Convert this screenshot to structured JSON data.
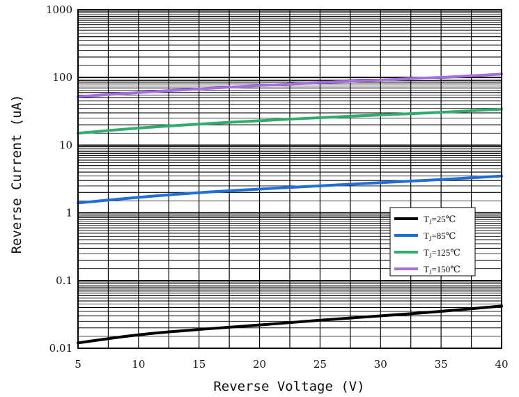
{
  "chart_data": {
    "type": "line",
    "xlabel": "Reverse Voltage (V)",
    "ylabel": "Reverse Current (uA)",
    "xlim": [
      5,
      40
    ],
    "ylim": [
      0.01,
      1000
    ],
    "yscale": "log",
    "x_ticks": [
      "5",
      "10",
      "15",
      "20",
      "25",
      "30",
      "35",
      "40"
    ],
    "y_ticks": [
      "0.01",
      "0.1",
      "1",
      "10",
      "100",
      "1000"
    ],
    "grid": true,
    "legend_position": "center-right",
    "x": [
      5,
      10,
      15,
      20,
      25,
      30,
      35,
      40
    ],
    "series": [
      {
        "name_prefix": "T",
        "name_sub": "J",
        "name_suffix": "=25℃",
        "color": "#000000",
        "values": [
          0.012,
          0.016,
          0.019,
          0.022,
          0.026,
          0.03,
          0.035,
          0.042
        ]
      },
      {
        "name_prefix": "T",
        "name_sub": "J",
        "name_suffix": "=85℃",
        "color": "#1f6fd6",
        "values": [
          1.4,
          1.7,
          2.0,
          2.25,
          2.5,
          2.8,
          3.1,
          3.5
        ]
      },
      {
        "name_prefix": "T",
        "name_sub": "J",
        "name_suffix": "=125℃",
        "color": "#2fae6b",
        "values": [
          15,
          18,
          20.5,
          23,
          25.5,
          28,
          30.5,
          34
        ]
      },
      {
        "name_prefix": "T",
        "name_sub": "J",
        "name_suffix": "=150℃",
        "color": "#a76ee0",
        "values": [
          52,
          60,
          68,
          76,
          84,
          92,
          100,
          112
        ]
      }
    ]
  }
}
